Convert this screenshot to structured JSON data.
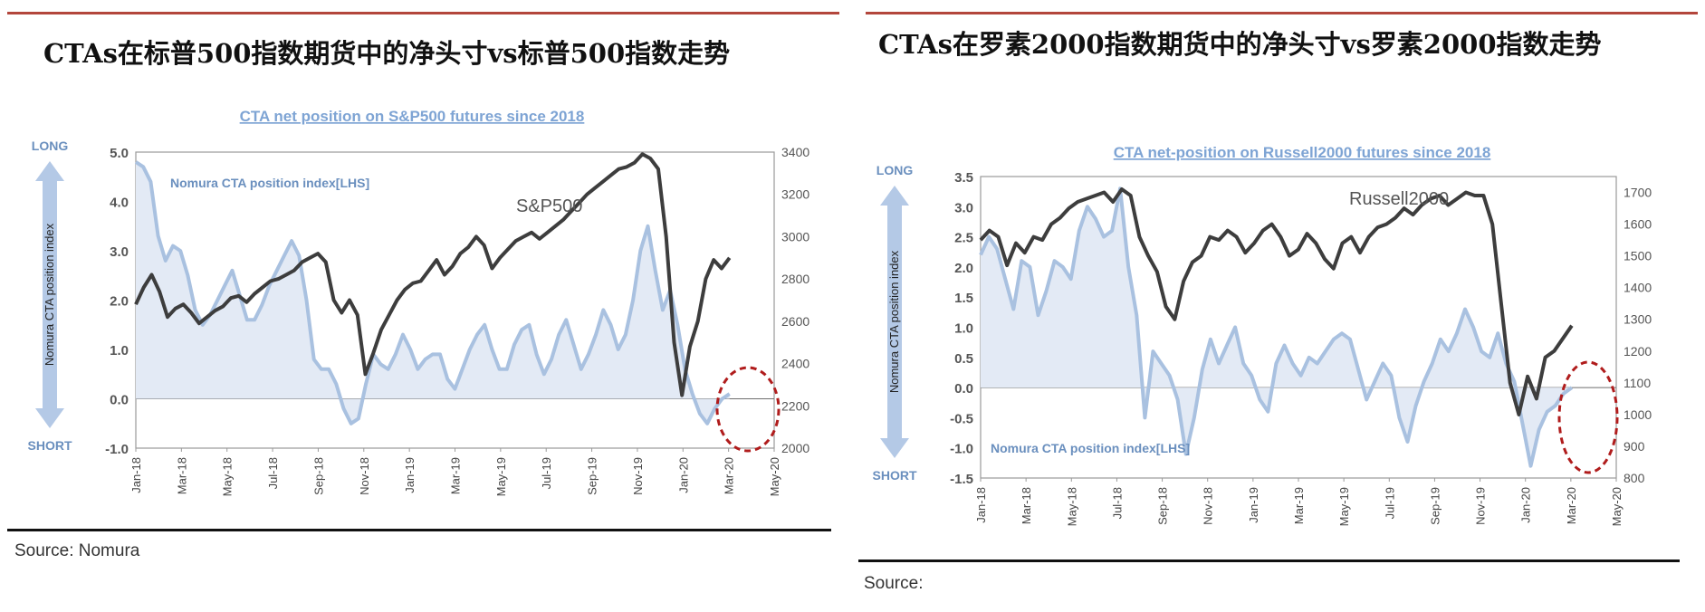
{
  "panels": [
    {
      "heading": "CTAs在标普500指数期货中的净头寸vs标普500指数走势",
      "source": "Source: Nomura",
      "chart_data": {
        "type": "line",
        "title": "CTA net position on S&P500 futures since 2018",
        "series": [
          {
            "name": "Nomura CTA position index[LHS]",
            "axis": "left",
            "style": "area",
            "color": "#a9c1e0",
            "fill": "#e3eaf5",
            "values": [
              4.8,
              4.7,
              4.4,
              3.3,
              2.8,
              3.1,
              3.0,
              2.5,
              1.8,
              1.5,
              1.7,
              2.0,
              2.3,
              2.6,
              2.1,
              1.6,
              1.6,
              1.9,
              2.3,
              2.6,
              2.9,
              3.2,
              2.9,
              2.0,
              0.8,
              0.6,
              0.6,
              0.3,
              -0.2,
              -0.5,
              -0.4,
              0.3,
              0.9,
              0.7,
              0.6,
              0.9,
              1.3,
              1.0,
              0.6,
              0.8,
              0.9,
              0.9,
              0.4,
              0.2,
              0.6,
              1.0,
              1.3,
              1.5,
              1.0,
              0.6,
              0.6,
              1.1,
              1.4,
              1.5,
              0.9,
              0.5,
              0.8,
              1.3,
              1.6,
              1.1,
              0.6,
              0.9,
              1.3,
              1.8,
              1.5,
              1.0,
              1.3,
              2.0,
              3.0,
              3.5,
              2.6,
              1.8,
              2.2,
              1.5,
              0.6,
              0.1,
              -0.3,
              -0.5,
              -0.2,
              0.0,
              0.1
            ]
          },
          {
            "name": "S&P500",
            "axis": "right",
            "style": "line",
            "color": "#3d3d3d",
            "values": [
              2680,
              2760,
              2820,
              2740,
              2620,
              2660,
              2680,
              2640,
              2590,
              2620,
              2650,
              2670,
              2710,
              2720,
              2690,
              2730,
              2760,
              2790,
              2800,
              2820,
              2840,
              2880,
              2900,
              2920,
              2880,
              2700,
              2640,
              2700,
              2630,
              2350,
              2450,
              2560,
              2630,
              2700,
              2750,
              2780,
              2790,
              2840,
              2890,
              2820,
              2860,
              2920,
              2950,
              3000,
              2960,
              2850,
              2900,
              2940,
              2980,
              3000,
              3020,
              2990,
              3020,
              3050,
              3080,
              3120,
              3160,
              3200,
              3230,
              3260,
              3290,
              3320,
              3330,
              3350,
              3390,
              3370,
              3320,
              3000,
              2500,
              2250,
              2480,
              2600,
              2800,
              2890,
              2850,
              2900
            ]
          }
        ],
        "x_tick_labels": [
          "Jan-18",
          "Mar-18",
          "May-18",
          "Jul-18",
          "Sep-18",
          "Nov-18",
          "Jan-19",
          "Mar-19",
          "May-19",
          "Jul-19",
          "Sep-19",
          "Nov-19",
          "Jan-20",
          "Mar-20",
          "May-20"
        ],
        "y_left": {
          "ticks": [
            "-1.0",
            "0.0",
            "1.0",
            "2.0",
            "3.0",
            "4.0",
            "5.0"
          ],
          "range": [
            -1,
            5
          ],
          "top_label": "LONG",
          "bottom_label": "SHORT",
          "axis_label": "Nomura CTA position index"
        },
        "y_right": {
          "ticks": [
            "2000",
            "2200",
            "2400",
            "2600",
            "2800",
            "3000",
            "3200",
            "3400"
          ],
          "range": [
            2000,
            3400
          ]
        },
        "annotations": {
          "series_label_lhs": "Nomura CTA position index[LHS]",
          "series_label_rhs": "S&P500"
        }
      }
    },
    {
      "heading": "CTAs在罗素2000指数期货中的净头寸vs罗素2000指数走势",
      "source": "Source:",
      "chart_data": {
        "type": "line",
        "title": "CTA net-position on Russell2000 futures since 2018",
        "series": [
          {
            "name": "Nomura CTA position index[LHS]",
            "axis": "left",
            "style": "area",
            "color": "#a9c1e0",
            "fill": "#e3eaf5",
            "values": [
              2.2,
              2.5,
              2.3,
              1.8,
              1.3,
              2.1,
              2.0,
              1.2,
              1.6,
              2.1,
              2.0,
              1.8,
              2.6,
              3.0,
              2.8,
              2.5,
              2.6,
              3.3,
              2.0,
              1.2,
              -0.5,
              0.6,
              0.4,
              0.2,
              -0.2,
              -1.1,
              -0.5,
              0.3,
              0.8,
              0.4,
              0.7,
              1.0,
              0.4,
              0.2,
              -0.2,
              -0.4,
              0.4,
              0.7,
              0.4,
              0.2,
              0.5,
              0.4,
              0.6,
              0.8,
              0.9,
              0.8,
              0.3,
              -0.2,
              0.1,
              0.4,
              0.2,
              -0.5,
              -0.9,
              -0.3,
              0.1,
              0.4,
              0.8,
              0.6,
              0.9,
              1.3,
              1.0,
              0.6,
              0.5,
              0.9,
              0.4,
              0.1,
              -0.6,
              -1.3,
              -0.7,
              -0.4,
              -0.3,
              -0.1,
              0.0
            ]
          },
          {
            "name": "Russell2000",
            "axis": "right",
            "style": "line",
            "color": "#3d3d3d",
            "values": [
              1550,
              1580,
              1560,
              1470,
              1540,
              1510,
              1560,
              1550,
              1600,
              1620,
              1650,
              1670,
              1680,
              1690,
              1700,
              1670,
              1710,
              1690,
              1560,
              1500,
              1450,
              1340,
              1300,
              1420,
              1480,
              1500,
              1560,
              1550,
              1580,
              1560,
              1510,
              1540,
              1580,
              1600,
              1560,
              1500,
              1520,
              1570,
              1540,
              1490,
              1460,
              1540,
              1560,
              1510,
              1560,
              1590,
              1600,
              1620,
              1650,
              1630,
              1660,
              1680,
              1690,
              1660,
              1680,
              1700,
              1690,
              1690,
              1600,
              1350,
              1100,
              1000,
              1120,
              1050,
              1180,
              1200,
              1240,
              1280
            ]
          }
        ],
        "x_tick_labels": [
          "Jan-18",
          "Mar-18",
          "May-18",
          "Jul-18",
          "Sep-18",
          "Nov-18",
          "Jan-19",
          "Mar-19",
          "May-19",
          "Jul-19",
          "Sep-19",
          "Nov-19",
          "Jan-20",
          "Mar-20",
          "May-20"
        ],
        "y_left": {
          "ticks": [
            "-1.5",
            "-1.0",
            "-0.5",
            "0.0",
            "0.5",
            "1.0",
            "1.5",
            "2.0",
            "2.5",
            "3.0",
            "3.5"
          ],
          "range": [
            -1.5,
            3.5
          ],
          "top_label": "LONG",
          "bottom_label": "SHORT",
          "axis_label": "Nomura CTA position index"
        },
        "y_right": {
          "ticks": [
            "800",
            "900",
            "1000",
            "1100",
            "1200",
            "1300",
            "1400",
            "1500",
            "1600",
            "1700"
          ],
          "range": [
            800,
            1750
          ]
        },
        "annotations": {
          "series_label_lhs": "Nomura CTA position index[LHS]",
          "series_label_rhs": "Russell2000"
        }
      }
    }
  ]
}
